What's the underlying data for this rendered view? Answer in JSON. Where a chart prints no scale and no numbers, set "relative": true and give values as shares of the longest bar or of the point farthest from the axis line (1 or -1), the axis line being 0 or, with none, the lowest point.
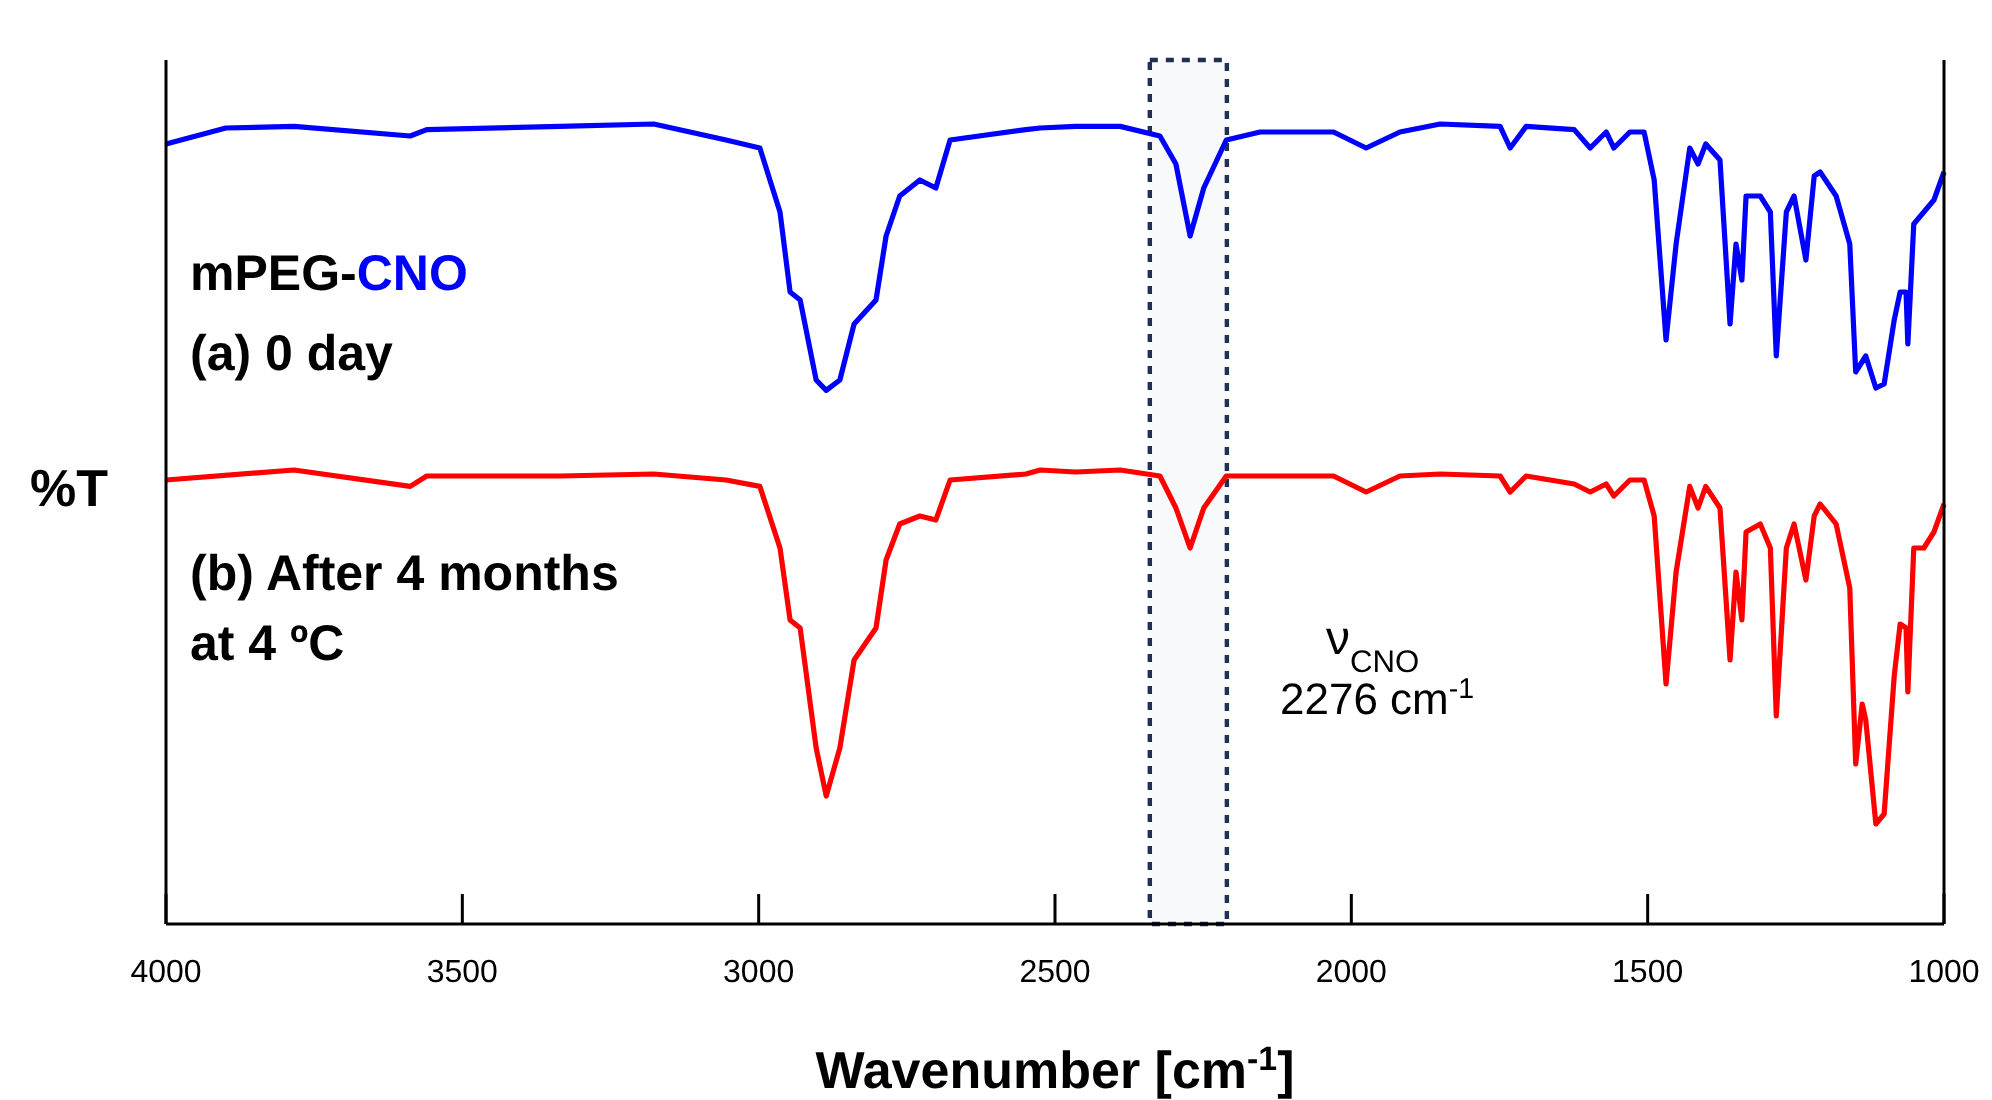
{
  "chart_data": {
    "type": "line",
    "relative": true,
    "xlabel": "Wavenumber [cm$^{-1}$]",
    "ylabel": "%T",
    "xlim": [
      4000,
      1000
    ],
    "xticks": [
      4000,
      3500,
      3000,
      2500,
      2000,
      1500,
      1000
    ],
    "grid": false,
    "marker": "none",
    "line_style": "solid",
    "tick_labels": "x",
    "series": [
      {
        "color": "#0000ff",
        "x": [
          4000,
          3899,
          3784,
          3588,
          3560,
          3335,
          3177,
          3055,
          2998,
          2964,
          2947,
          2930,
          2903,
          2886,
          2863,
          2839,
          2802,
          2785,
          2762,
          2728,
          2701,
          2677,
          2549,
          2525,
          2465,
          2390,
          2323,
          2296,
          2272,
          2249,
          2211,
          2154,
          2030,
          1975,
          1918,
          1850,
          1749,
          1732,
          1705,
          1624,
          1597,
          1570,
          1557,
          1530,
          1506,
          1489,
          1469,
          1452,
          1429,
          1415,
          1402,
          1378,
          1361,
          1351,
          1341,
          1334,
          1310,
          1293,
          1283,
          1266,
          1253,
          1233,
          1219,
          1209,
          1182,
          1159,
          1149,
          1132,
          1115,
          1101,
          1084,
          1074,
          1064,
          1061,
          1051,
          1034,
          1017,
          1000
        ],
        "values": [
          0.975,
          0.995,
          0.997,
          0.985,
          0.993,
          0.997,
          1.0,
          0.98,
          0.97,
          0.89,
          0.79,
          0.78,
          0.68,
          0.667,
          0.68,
          0.75,
          0.78,
          0.86,
          0.91,
          0.93,
          0.92,
          0.98,
          0.993,
          0.995,
          0.997,
          0.997,
          0.985,
          0.95,
          0.86,
          0.92,
          0.98,
          0.99,
          0.99,
          0.97,
          0.99,
          1.0,
          0.997,
          0.97,
          0.997,
          0.993,
          0.97,
          0.99,
          0.97,
          0.99,
          0.99,
          0.93,
          0.73,
          0.85,
          0.97,
          0.95,
          0.975,
          0.955,
          0.75,
          0.85,
          0.805,
          0.91,
          0.91,
          0.89,
          0.71,
          0.89,
          0.91,
          0.83,
          0.935,
          0.94,
          0.91,
          0.85,
          0.69,
          0.71,
          0.67,
          0.675,
          0.755,
          0.79,
          0.79,
          0.725,
          0.875,
          0.89,
          0.905,
          0.94
        ]
      },
      {
        "color": "#ff0000",
        "x": [
          4000,
          3784,
          3588,
          3560,
          3335,
          3177,
          3055,
          2998,
          2964,
          2947,
          2930,
          2903,
          2886,
          2863,
          2839,
          2802,
          2785,
          2762,
          2728,
          2701,
          2677,
          2549,
          2525,
          2465,
          2390,
          2323,
          2296,
          2272,
          2249,
          2211,
          2154,
          2030,
          1975,
          1918,
          1850,
          1749,
          1732,
          1705,
          1624,
          1597,
          1570,
          1557,
          1530,
          1506,
          1489,
          1469,
          1452,
          1429,
          1415,
          1402,
          1378,
          1361,
          1351,
          1341,
          1334,
          1310,
          1293,
          1283,
          1266,
          1253,
          1233,
          1219,
          1209,
          1182,
          1159,
          1149,
          1138,
          1132,
          1115,
          1101,
          1084,
          1074,
          1064,
          1061,
          1051,
          1034,
          1017,
          1000
        ],
        "values": [
          0.555,
          0.5675,
          0.547,
          0.56,
          0.56,
          0.5625,
          0.555,
          0.547,
          0.47,
          0.38,
          0.37,
          0.22,
          0.16,
          0.22,
          0.33,
          0.37,
          0.455,
          0.5,
          0.51,
          0.505,
          0.555,
          0.5625,
          0.5675,
          0.565,
          0.5675,
          0.56,
          0.52,
          0.47,
          0.52,
          0.56,
          0.56,
          0.56,
          0.54,
          0.56,
          0.5625,
          0.56,
          0.54,
          0.56,
          0.55,
          0.54,
          0.55,
          0.535,
          0.555,
          0.555,
          0.51,
          0.3,
          0.44,
          0.547,
          0.52,
          0.547,
          0.52,
          0.33,
          0.44,
          0.38,
          0.49,
          0.5,
          0.47,
          0.26,
          0.47,
          0.5,
          0.43,
          0.51,
          0.525,
          0.5,
          0.42,
          0.2,
          0.275,
          0.255,
          0.125,
          0.1375,
          0.31,
          0.375,
          0.37,
          0.29,
          0.47,
          0.47,
          0.49,
          0.525
        ]
      }
    ],
    "bands": [
      {
        "axis": "x",
        "from": 2340,
        "to": 2210,
        "color": "#1f3050"
      }
    ],
    "annotations": [
      "mPEG-CNO",
      "(a) 0 day",
      "(b) After 4 months at 4 ºC",
      "ν$_{CNO}$",
      "2276 cm$^{-1}$"
    ]
  }
}
